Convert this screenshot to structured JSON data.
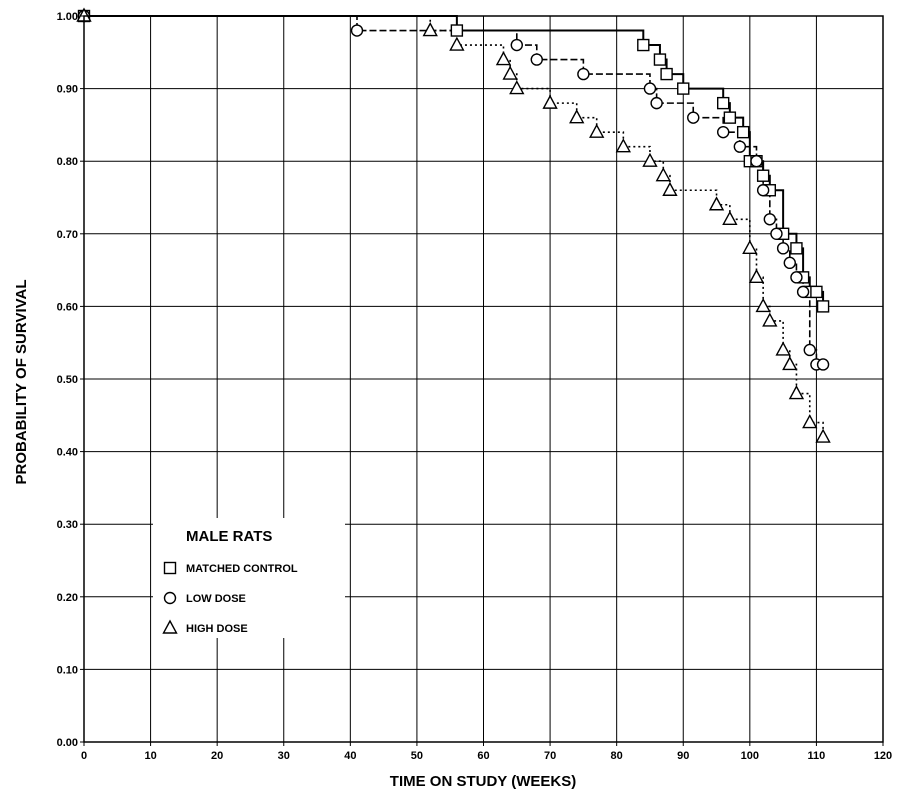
{
  "chart_data": {
    "type": "line",
    "xlabel": "TIME ON STUDY (WEEKS)",
    "ylabel": "PROBABILITY OF SURVIVAL",
    "xlim": [
      0,
      120
    ],
    "ylim": [
      0,
      1.0
    ],
    "x_ticks": [
      "0",
      "10",
      "20",
      "30",
      "40",
      "50",
      "60",
      "70",
      "80",
      "90",
      "100",
      "110",
      "120"
    ],
    "y_ticks": [
      "0.00",
      "0.10",
      "0.20",
      "0.30",
      "0.40",
      "0.50",
      "0.60",
      "0.70",
      "0.80",
      "0.90",
      "1.00"
    ],
    "grid": true,
    "legend": {
      "title": "MALE RATS",
      "position": "lower-left"
    },
    "series": [
      {
        "name": "MATCHED CONTROL",
        "marker": "square",
        "line_style": "solid",
        "step_points": [
          [
            0,
            1.0
          ],
          [
            56,
            0.98
          ],
          [
            84,
            0.96
          ],
          [
            86.5,
            0.94
          ],
          [
            87.5,
            0.92
          ],
          [
            90,
            0.9
          ],
          [
            96,
            0.88
          ],
          [
            97,
            0.86
          ],
          [
            99,
            0.84
          ],
          [
            100,
            0.8
          ],
          [
            101,
            0.8
          ],
          [
            102,
            0.78
          ],
          [
            103,
            0.76
          ],
          [
            105,
            0.7
          ],
          [
            107,
            0.68
          ],
          [
            108,
            0.64
          ],
          [
            109,
            0.62
          ],
          [
            110,
            0.62
          ],
          [
            111,
            0.6
          ]
        ]
      },
      {
        "name": "LOW DOSE",
        "marker": "circle",
        "line_style": "dashed",
        "step_points": [
          [
            0,
            1.0
          ],
          [
            41,
            0.98
          ],
          [
            65,
            0.96
          ],
          [
            68,
            0.94
          ],
          [
            75,
            0.92
          ],
          [
            85,
            0.9
          ],
          [
            86,
            0.88
          ],
          [
            91.5,
            0.86
          ],
          [
            96,
            0.84
          ],
          [
            98.5,
            0.82
          ],
          [
            101,
            0.8
          ],
          [
            102,
            0.76
          ],
          [
            103,
            0.72
          ],
          [
            104,
            0.7
          ],
          [
            105,
            0.68
          ],
          [
            106,
            0.66
          ],
          [
            107,
            0.64
          ],
          [
            108,
            0.62
          ],
          [
            109,
            0.54
          ],
          [
            110,
            0.52
          ],
          [
            111,
            0.52
          ]
        ]
      },
      {
        "name": "HIGH DOSE",
        "marker": "triangle",
        "line_style": "dotted",
        "step_points": [
          [
            0,
            1.0
          ],
          [
            52,
            0.98
          ],
          [
            56,
            0.96
          ],
          [
            63,
            0.94
          ],
          [
            64,
            0.92
          ],
          [
            65,
            0.9
          ],
          [
            70,
            0.88
          ],
          [
            74,
            0.86
          ],
          [
            77,
            0.84
          ],
          [
            81,
            0.82
          ],
          [
            85,
            0.8
          ],
          [
            87,
            0.78
          ],
          [
            88,
            0.76
          ],
          [
            95,
            0.74
          ],
          [
            97,
            0.72
          ],
          [
            100,
            0.68
          ],
          [
            101,
            0.64
          ],
          [
            102,
            0.6
          ],
          [
            103,
            0.58
          ],
          [
            105,
            0.54
          ],
          [
            106,
            0.52
          ],
          [
            107,
            0.48
          ],
          [
            109,
            0.44
          ],
          [
            111,
            0.42
          ]
        ]
      }
    ]
  }
}
